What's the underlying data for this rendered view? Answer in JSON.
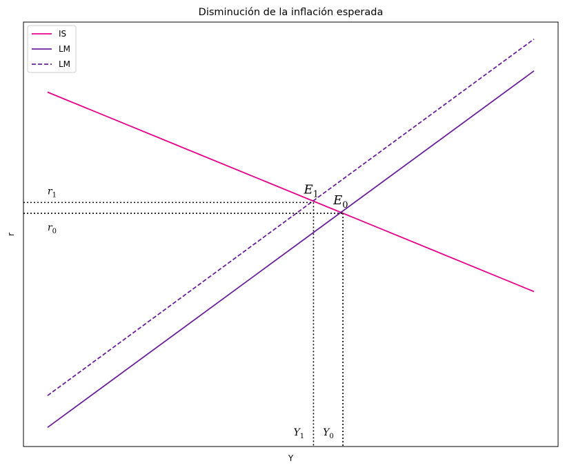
{
  "chart_data": {
    "type": "line",
    "title": "Disminución de la inflación esperada",
    "xlabel": "Y",
    "ylabel": "r",
    "xlim": [
      0,
      10
    ],
    "ylim": [
      0,
      10
    ],
    "grid": false,
    "legend_position": "top-left",
    "show_ticks": false,
    "series": [
      {
        "name": "IS",
        "color": "#e6008a",
        "dash": "solid",
        "x": [
          0.45,
          9.55
        ],
        "y": [
          8.35,
          3.65
        ]
      },
      {
        "name": "LM",
        "color": "#6a1f9b",
        "dash": "solid",
        "x": [
          0.45,
          9.55
        ],
        "y": [
          0.45,
          8.85
        ]
      },
      {
        "name": "LM",
        "color": "#6a1f9b",
        "dash": "dashed",
        "x": [
          0.45,
          9.55
        ],
        "y": [
          1.2,
          9.6
        ]
      }
    ],
    "equilibria": [
      {
        "label_main": "E",
        "label_sub": "0",
        "x": 5.975,
        "y": 5.495
      },
      {
        "label_main": "E",
        "label_sub": "1",
        "x": 5.425,
        "y": 5.75
      }
    ],
    "guides": [
      {
        "axis": "r",
        "label_main": "r",
        "label_sub": "1",
        "value": 5.75
      },
      {
        "axis": "r",
        "label_main": "r",
        "label_sub": "0",
        "value": 5.495
      },
      {
        "axis": "Y",
        "label_main": "Y",
        "label_sub": "1",
        "value": 5.425
      },
      {
        "axis": "Y",
        "label_main": "Y",
        "label_sub": "0",
        "value": 5.975
      }
    ]
  }
}
